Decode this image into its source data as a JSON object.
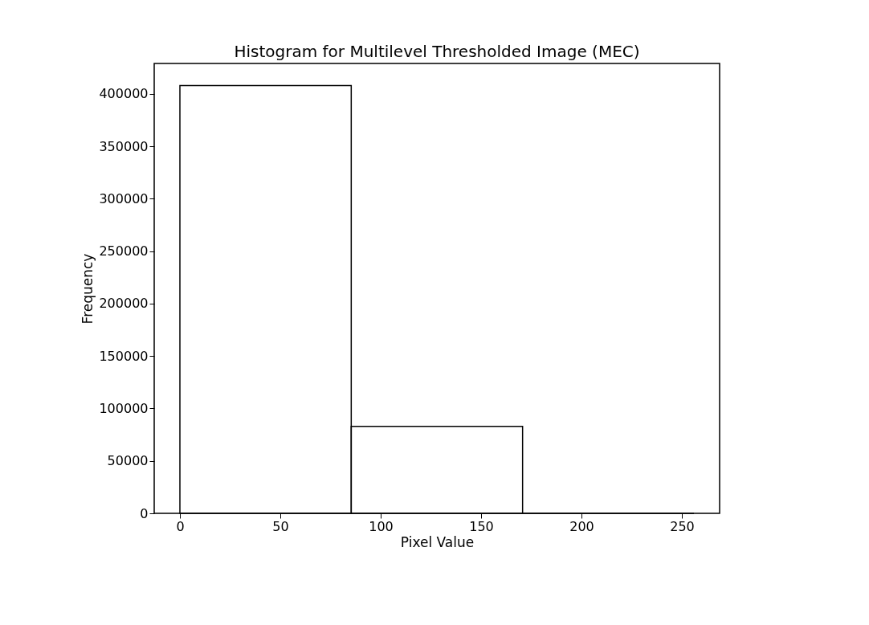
{
  "chart_data": {
    "type": "histogram",
    "title": "Histogram for Multilevel Thresholded Image (MEC)",
    "xlabel": "Pixel Value",
    "ylabel": "Frequency",
    "bins": [
      0,
      85.33,
      170.67,
      256
    ],
    "values": [
      408000,
      83000,
      0
    ],
    "color": "#000000",
    "xlim": [
      -12.8,
      268.8
    ],
    "xticks": [
      0,
      50,
      100,
      150,
      200,
      250
    ],
    "ylim": [
      0,
      429000
    ],
    "yticks": [
      0,
      50000,
      100000,
      150000,
      200000,
      250000,
      300000,
      350000,
      400000
    ],
    "grid": false
  }
}
